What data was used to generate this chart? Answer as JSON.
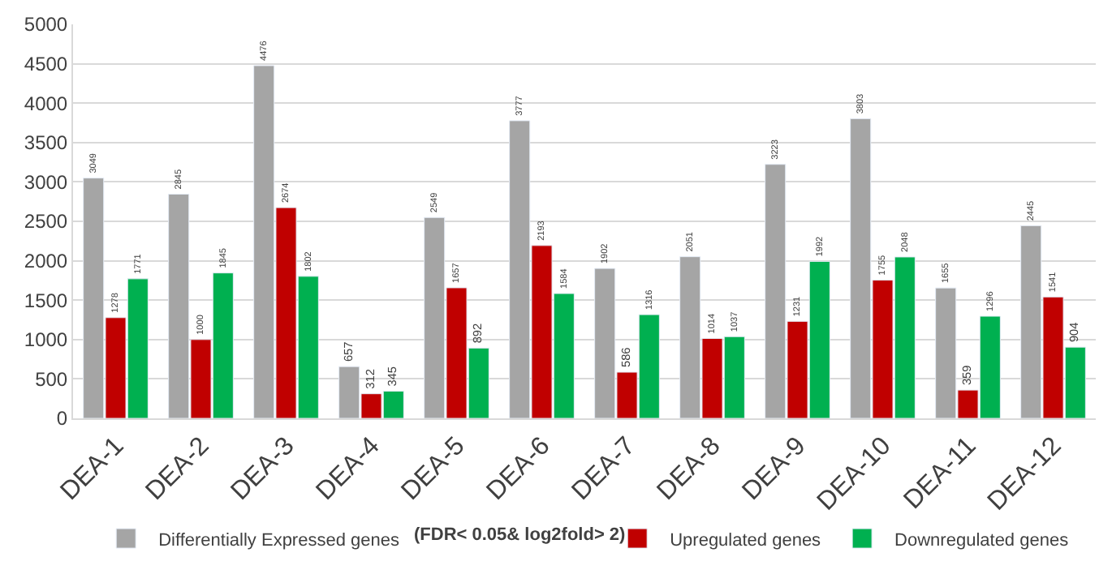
{
  "chart_data": {
    "type": "bar",
    "categories": [
      "DEA-1",
      "DEA-2",
      "DEA-3",
      "DEA-4",
      "DEA-5",
      "DEA-6",
      "DEA-7",
      "DEA-8",
      "DEA-9",
      "DEA-10",
      "DEA-11",
      "DEA-12"
    ],
    "series": [
      {
        "name": "Differentially Expressed genes",
        "color": "#a5a5a5",
        "values": [
          3049,
          2845,
          4476,
          657,
          2549,
          3777,
          1902,
          2051,
          3223,
          3803,
          1655,
          2445
        ]
      },
      {
        "name": "Upregulated genes",
        "color": "#c00000",
        "values": [
          1278,
          1000,
          2674,
          312,
          1657,
          2193,
          586,
          1014,
          1231,
          1755,
          359,
          1541
        ]
      },
      {
        "name": "Downregulated genes",
        "color": "#00b050",
        "values": [
          1771,
          1845,
          1802,
          345,
          892,
          1584,
          1316,
          1037,
          1992,
          2048,
          1296,
          904
        ]
      }
    ],
    "ylim": [
      0,
      5000
    ],
    "yticks": [
      0,
      500,
      1000,
      1500,
      2000,
      2500,
      3000,
      3500,
      4000,
      4500,
      5000
    ],
    "grid": "y",
    "data_labels": true,
    "legend": "bottom",
    "annotations": [
      "(FDR< 0.05& log2fold> 2)"
    ]
  }
}
